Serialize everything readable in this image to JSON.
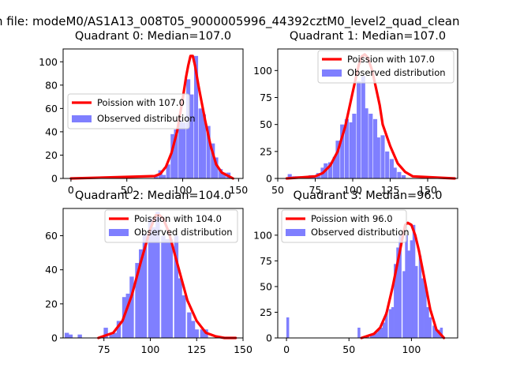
{
  "figure": {
    "suptitle": "n file: modeM0/AS1A13_008T05_9000005996_44392cztM0_level2_quad_clean",
    "colors": {
      "fit": "#ff0000",
      "hist": "#7f7fff",
      "axis": "#000000"
    }
  },
  "chart_data": [
    {
      "type": "bar",
      "title": "Quadrant 0: Median=107.0",
      "xlim": [
        -7,
        154
      ],
      "ylim": [
        0,
        111
      ],
      "xticks": [
        0,
        50,
        100,
        150
      ],
      "yticks": [
        0,
        20,
        40,
        60,
        80,
        100
      ],
      "legend_position": "center-left",
      "legend": [
        "Poission with 107.0",
        "Observed distribution"
      ],
      "bin_width": 3.6,
      "histogram": {
        "name": "Observed distribution",
        "x": [
          76,
          80,
          83,
          87,
          91,
          94,
          98,
          101,
          105,
          108,
          112,
          116,
          119,
          123,
          127,
          130,
          134,
          137,
          141
        ],
        "values": [
          2,
          7,
          3,
          12,
          38,
          42,
          50,
          48,
          85,
          72,
          105,
          60,
          55,
          45,
          30,
          18,
          8,
          5,
          5
        ]
      },
      "poisson": {
        "name": "Poission with 107.0",
        "x": [
          0,
          75,
          80,
          85,
          90,
          95,
          100,
          103,
          105,
          107,
          109,
          111,
          114,
          120,
          125,
          130,
          135,
          145
        ],
        "values": [
          0,
          2,
          4,
          10,
          22,
          40,
          68,
          87,
          97,
          105,
          105,
          97,
          80,
          50,
          28,
          12,
          5,
          0
        ]
      }
    },
    {
      "type": "bar",
      "title": "Quadrant 1: Median=107.0",
      "xlim": [
        50,
        170
      ],
      "ylim": [
        0,
        120
      ],
      "xticks": [
        50,
        75,
        100,
        125,
        150
      ],
      "yticks": [
        0,
        25,
        50,
        75,
        100
      ],
      "legend_position": "top-right",
      "legend": [
        "Poission with 107.0",
        "Observed distribution"
      ],
      "bin_width": 2.7,
      "histogram": {
        "name": "Observed distribution",
        "x": [
          58,
          61,
          63,
          66,
          69,
          72,
          74,
          77,
          80,
          82,
          85,
          88,
          90,
          93,
          96,
          99,
          101,
          104,
          107,
          109,
          112,
          115,
          117,
          120,
          123,
          126,
          128,
          131,
          134
        ],
        "values": [
          4,
          2,
          2,
          2,
          2,
          3,
          3,
          5,
          10,
          14,
          15,
          20,
          35,
          50,
          55,
          52,
          60,
          90,
          95,
          65,
          60,
          55,
          38,
          40,
          25,
          18,
          10,
          6,
          3
        ]
      },
      "poisson": {
        "name": "Poission with 107.0",
        "x": [
          56,
          75,
          80,
          85,
          90,
          95,
          100,
          104,
          106,
          108,
          110,
          113,
          118,
          120,
          125,
          130,
          135,
          140,
          168
        ],
        "values": [
          0,
          2,
          5,
          12,
          25,
          48,
          80,
          105,
          113,
          115,
          112,
          100,
          68,
          50,
          30,
          14,
          6,
          2,
          0
        ]
      }
    },
    {
      "type": "bar",
      "title": "Quadrant 2: Median=104.0",
      "xlim": [
        53,
        150
      ],
      "ylim": [
        0,
        76
      ],
      "xticks": [
        75,
        100,
        125,
        150
      ],
      "yticks": [
        0,
        20,
        40,
        60
      ],
      "legend_position": "top-right",
      "legend": [
        "Poission with 104.0",
        "Observed distribution"
      ],
      "bin_width": 2.3,
      "histogram": {
        "name": "Observed distribution",
        "x": [
          55,
          57,
          62,
          76,
          79,
          81,
          83,
          86,
          88,
          90,
          93,
          95,
          97,
          100,
          102,
          104,
          107,
          109,
          111,
          114,
          116,
          118,
          121,
          123,
          125,
          128,
          130
        ],
        "values": [
          3,
          2,
          2,
          6,
          2,
          3,
          10,
          24,
          26,
          36,
          44,
          52,
          61,
          70,
          65,
          74,
          60,
          58,
          58,
          60,
          35,
          25,
          15,
          10,
          5,
          5,
          5
        ]
      },
      "poisson": {
        "name": "Poission with 104.0",
        "x": [
          72,
          80,
          85,
          90,
          95,
          100,
          103,
          105,
          107,
          110,
          115,
          120,
          125,
          130,
          135,
          140,
          146
        ],
        "values": [
          0,
          3,
          10,
          25,
          45,
          64,
          72,
          72,
          70,
          62,
          42,
          22,
          10,
          3,
          1,
          0,
          0
        ]
      }
    },
    {
      "type": "bar",
      "title": "Quadrant 3: Median=96.0",
      "xlim": [
        -7,
        137
      ],
      "ylim": [
        0,
        126
      ],
      "xticks": [
        0,
        50,
        100
      ],
      "yticks": [
        0,
        25,
        50,
        75,
        100
      ],
      "legend_position": "top-left",
      "legend": [
        "Poission with 96.0",
        "Observed distribution"
      ],
      "bin_width": 2.2,
      "histogram": {
        "name": "Observed distribution",
        "x": [
          1,
          58,
          61,
          65,
          68,
          70,
          72,
          74,
          76,
          78,
          80,
          83,
          85,
          87,
          89,
          91,
          94,
          96,
          98,
          100,
          102,
          104,
          107,
          109,
          111,
          113,
          115,
          118,
          120,
          122,
          124
        ],
        "values": [
          20,
          10,
          1,
          2,
          3,
          4,
          5,
          8,
          10,
          15,
          25,
          28,
          30,
          72,
          88,
          100,
          65,
          100,
          85,
          95,
          110,
          70,
          80,
          58,
          52,
          30,
          20,
          12,
          8,
          8,
          10
        ]
      },
      "poisson": {
        "name": "Poission with 96.0",
        "x": [
          60,
          70,
          75,
          80,
          85,
          90,
          93,
          95,
          97,
          100,
          103,
          106,
          110,
          115,
          120,
          126
        ],
        "values": [
          0,
          4,
          10,
          24,
          50,
          80,
          98,
          110,
          112,
          110,
          100,
          85,
          60,
          28,
          8,
          0
        ]
      }
    }
  ]
}
